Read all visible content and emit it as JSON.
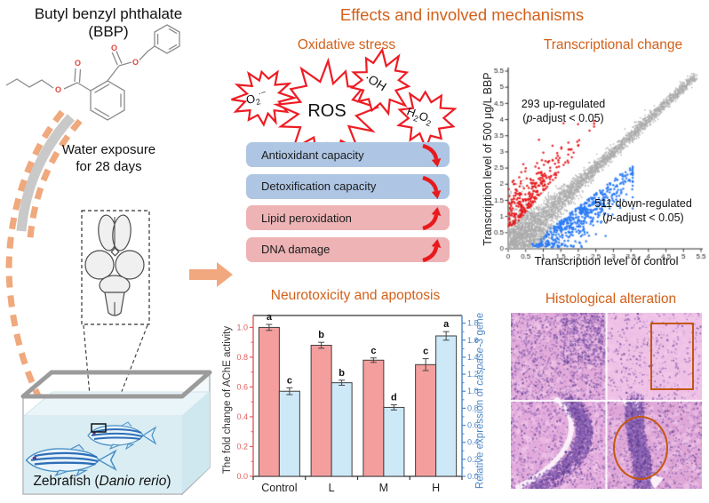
{
  "figure": {
    "background": "#ffffff",
    "accent_orange": "#d2601a"
  },
  "left_panel": {
    "compound_title": "Butyl benzyl phthalate",
    "compound_abbr": "(BBP)",
    "exposure_line1": "Water exposure",
    "exposure_line2": "for 28 days",
    "tank_label_pre": "Zebrafish (",
    "tank_label_species": "Danio rerio",
    "tank_label_post": ")"
  },
  "header": {
    "title": "Effects and involved mechanisms"
  },
  "oxidative_stress": {
    "title": "Oxidative stress",
    "ros_label": "ROS",
    "superoxide": {
      "base": "O",
      "sub": "2",
      "sup": "·−"
    },
    "hydroxyl": "·OH",
    "peroxide": {
      "p1": "H",
      "s1": "2",
      "p2": "O",
      "s2": "2"
    },
    "burst_color": "#ed1c24",
    "trend_arrow_color": "#e8191c",
    "boxes": [
      {
        "label": "Antioxidant capacity",
        "trend": "down",
        "fill": "#aec6e4"
      },
      {
        "label": "Detoxification capacity",
        "trend": "down",
        "fill": "#aec6e4"
      },
      {
        "label": "Lipid peroxidation",
        "trend": "up",
        "fill": "#edb3b5"
      },
      {
        "label": "DNA damage",
        "trend": "up",
        "fill": "#edb3b5"
      }
    ]
  },
  "transcription_panel": {
    "title": "Transcriptional change",
    "up_annotation": {
      "line1": "293 up-regulated",
      "pre": "(",
      "italic": "p",
      "post": "-adjust < 0.05)"
    },
    "down_annotation": {
      "line1": "511 down-regulated",
      "pre": "(",
      "italic": "p",
      "post": "-adjust < 0.05)"
    }
  },
  "neuro_panel": {
    "title": "Neurotoxicity and apoptosis"
  },
  "histology_panel": {
    "title": "Histological alteration",
    "annotation_color": "#c4570f"
  },
  "chart_data": [
    {
      "id": "transcriptional-change-scatter",
      "type": "scatter",
      "title": "Transcriptional change",
      "xlabel": "Transcription level of control",
      "ylabel": "Transcription level of 500 μg/L BBP",
      "xlim": [
        0,
        5.5
      ],
      "ylim": [
        0,
        5.5
      ],
      "xticks": [
        0,
        0.5,
        1,
        1.5,
        2,
        2.5,
        3,
        3.5,
        4,
        4.5,
        5,
        5.5
      ],
      "yticks": [
        0,
        0.5,
        1,
        1.5,
        2,
        2.5,
        3,
        3.5,
        4,
        4.5,
        5,
        5.5
      ],
      "grid": false,
      "legend": false,
      "series": [
        {
          "name": "unchanged genes",
          "role": "background",
          "color": "#ababab",
          "approx_n": 3500,
          "pattern": "dense diagonal band y = x from (0,0) to (5.2,5.2), spread widens below 1.5"
        },
        {
          "name": "up-regulated",
          "count": 293,
          "color": "#e8191c",
          "criterion": "p-adjust < 0.05",
          "pattern": "above diagonal, mostly x < 2.5, y up to 4.2"
        },
        {
          "name": "down-regulated",
          "count": 511,
          "color": "#2b7bf5",
          "criterion": "p-adjust < 0.05",
          "pattern": "below diagonal, mostly 0.5 < x < 3.6"
        }
      ]
    },
    {
      "id": "ache-caspase3-bars",
      "type": "bar",
      "categories": [
        "Control",
        "L",
        "M",
        "H"
      ],
      "series": [
        {
          "name": "The fold change of AChE activity",
          "axis": "left",
          "fill": "#f59e9e",
          "stroke": "#3f3f3f",
          "values": [
            1.0,
            0.88,
            0.78,
            0.75
          ],
          "errors": [
            0.02,
            0.02,
            0.015,
            0.04
          ],
          "letters": [
            "a",
            "b",
            "c",
            "c"
          ]
        },
        {
          "name": "Relative expression of caspase-3 gene",
          "axis": "right",
          "fill": "#cde9f8",
          "stroke": "#3f3f3f",
          "values": [
            1.0,
            1.1,
            0.81,
            1.65
          ],
          "errors": [
            0.04,
            0.03,
            0.03,
            0.05
          ],
          "letters": [
            "c",
            "b",
            "d",
            "a"
          ]
        }
      ],
      "left_axis": {
        "label_plain": "The fold change of AChE activity",
        "ticks": [
          0.0,
          0.2,
          0.4,
          0.6,
          0.8,
          1.0
        ],
        "range": [
          0,
          1.08
        ],
        "color": "#e05c5c"
      },
      "right_axis": {
        "label_pre": "Relative expression of ",
        "label_italic": "caspase-3",
        "label_post": " gene",
        "ticks": [
          0.0,
          0.2,
          0.4,
          0.6,
          0.8,
          1.0,
          1.2,
          1.4,
          1.6,
          1.8
        ],
        "range": [
          0,
          1.89
        ],
        "color": "#4a86c8"
      },
      "grid": false
    }
  ]
}
